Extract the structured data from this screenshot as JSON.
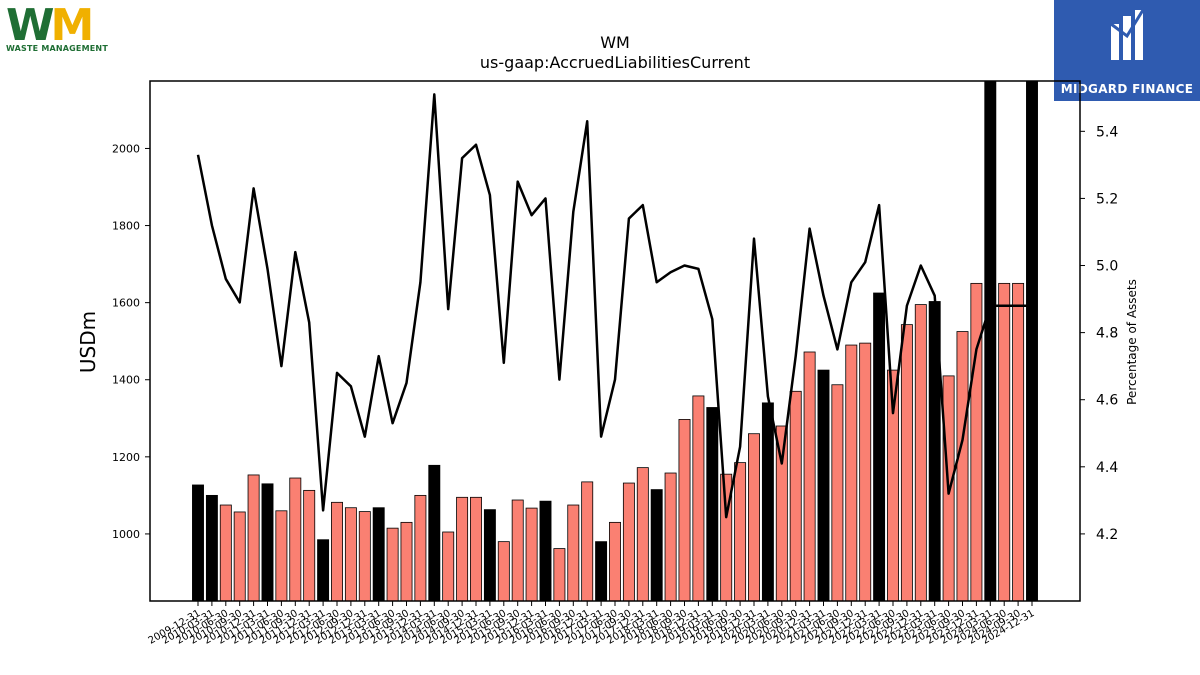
{
  "logos": {
    "left_text": "WASTE MANAGEMENT",
    "left_letters": [
      "W",
      "M"
    ],
    "right_text": "MIDGARD FINANCE"
  },
  "chart_data": {
    "type": "bar",
    "title": "WM",
    "subtitle": "us-gaap:AccruedLiabilitiesCurrent",
    "ylabel": "USDm",
    "y2label": "Percentage of Assets",
    "ylim": [
      826,
      2175
    ],
    "y2lim": [
      4.0,
      5.55
    ],
    "yticks": [
      1000,
      1200,
      1400,
      1600,
      1800,
      2000
    ],
    "y2ticks": [
      4.2,
      4.4,
      4.6,
      4.8,
      5.0,
      5.2,
      5.4
    ],
    "colors": {
      "annual": "#000000",
      "quarterly": "#fa8072",
      "line": "#000000"
    },
    "categories": [
      "2009-12-31",
      "2010-03-31",
      "2010-06-30",
      "2010-09-30",
      "2010-12-31",
      "2011-03-31",
      "2011-06-30",
      "2011-09-30",
      "2011-12-31",
      "2012-03-31",
      "2012-06-30",
      "2012-09-30",
      "2012-12-31",
      "2013-03-31",
      "2013-06-30",
      "2013-09-30",
      "2013-12-31",
      "2014-03-31",
      "2014-06-30",
      "2014-09-30",
      "2014-12-31",
      "2015-03-31",
      "2015-06-30",
      "2015-09-30",
      "2015-12-31",
      "2016-03-31",
      "2016-06-30",
      "2016-09-30",
      "2016-12-31",
      "2017-03-31",
      "2017-06-30",
      "2017-09-30",
      "2017-12-31",
      "2018-03-31",
      "2018-06-30",
      "2018-09-30",
      "2018-12-31",
      "2019-03-31",
      "2019-06-30",
      "2019-09-30",
      "2019-12-31",
      "2020-03-31",
      "2020-06-30",
      "2020-09-30",
      "2020-12-31",
      "2021-03-31",
      "2021-06-30",
      "2021-09-30",
      "2021-12-31",
      "2022-03-31",
      "2022-06-30",
      "2022-09-30",
      "2022-12-31",
      "2023-03-31",
      "2023-06-30",
      "2023-09-30",
      "2023-12-31",
      "2024-03-31",
      "2024-06-30",
      "2024-09-30",
      "2024-12-31"
    ],
    "xtick_labels": [
      "2009-12-31",
      "2010-03-31",
      "2010-06-30",
      "2010-09-30",
      "2010-12-31",
      "2011-03-31",
      "2011-06-30",
      "2011-09-30",
      "2011-12-31",
      "2012-03-31",
      "2012-06-30",
      "2012-09-30",
      "2012-12-31",
      "2013-03-31",
      "2013-06-30",
      "2013-09-30",
      "2013-12-31",
      "2014-03-31",
      "2014-06-30",
      "2014-09-30",
      "2014-12-31",
      "2015-03-31",
      "2015-06-30",
      "2015-09-30",
      "2015-12-31",
      "2016-03-31",
      "2016-06-30",
      "2016-09-30",
      "2016-12-31",
      "2017-03-31",
      "2017-06-30",
      "2017-09-30",
      "2017-12-31",
      "2018-03-31",
      "2018-06-30",
      "2018-09-30",
      "2018-12-31",
      "2019-03-31",
      "2019-06-30",
      "2019-09-30",
      "2019-12-31",
      "2020-03-31",
      "2020-06-30",
      "2020-09-30",
      "2020-12-31",
      "2021-03-31",
      "2021-06-30",
      "2021-09-30",
      "2021-12-31",
      "2022-03-31",
      "2022-06-30",
      "2022-09-30",
      "2022-12-31",
      "2023-03-31",
      "2023-06-30",
      "2023-09-30",
      "2023-12-31",
      "2024-03-31",
      "2024-06-30",
      "2024-09-30",
      "2024-12-31"
    ],
    "annual_flags": [
      1,
      1,
      0,
      0,
      0,
      1,
      0,
      0,
      0,
      1,
      0,
      0,
      0,
      1,
      0,
      0,
      0,
      1,
      0,
      0,
      0,
      1,
      0,
      0,
      0,
      1,
      0,
      0,
      0,
      1,
      0,
      0,
      0,
      1,
      0,
      0,
      0,
      1,
      0,
      0,
      0,
      1,
      0,
      0,
      0,
      1,
      0,
      0,
      0,
      1,
      0,
      0,
      0,
      1,
      0,
      0,
      0,
      1,
      0,
      0,
      1
    ],
    "values": [
      1127,
      1100,
      1075,
      1057,
      1153,
      1130,
      1060,
      1145,
      1113,
      985,
      1082,
      1068,
      1058,
      1068,
      1015,
      1030,
      1100,
      1178,
      1005,
      1095,
      1095,
      1063,
      980,
      1088,
      1067,
      1085,
      962,
      1075,
      1135,
      980,
      1030,
      1132,
      1172,
      1115,
      1158,
      1297,
      1358,
      1328,
      1155,
      1185,
      1260,
      1340,
      1280,
      1370,
      1472,
      1425,
      1387,
      1490,
      1495,
      1625,
      1425,
      1543,
      1595,
      1603,
      1410,
      1525,
      1650,
      2175,
      1650,
      1650,
      2175
    ],
    "line_values": [
      5.33,
      5.12,
      4.96,
      4.89,
      5.23,
      4.99,
      4.7,
      5.04,
      4.83,
      4.27,
      4.68,
      4.64,
      4.49,
      4.73,
      4.53,
      4.65,
      4.95,
      5.51,
      4.87,
      5.32,
      5.36,
      5.21,
      4.71,
      5.25,
      5.15,
      5.2,
      4.66,
      5.16,
      5.43,
      4.49,
      4.66,
      5.14,
      5.18,
      4.95,
      4.98,
      5.0,
      4.99,
      4.84,
      4.25,
      4.46,
      5.08,
      4.61,
      4.41,
      4.73,
      5.11,
      4.91,
      4.75,
      4.95,
      5.01,
      5.18,
      4.56,
      4.88,
      5.0,
      4.91,
      4.32,
      4.48,
      4.75,
      4.88,
      4.88,
      4.88,
      4.88
    ]
  }
}
